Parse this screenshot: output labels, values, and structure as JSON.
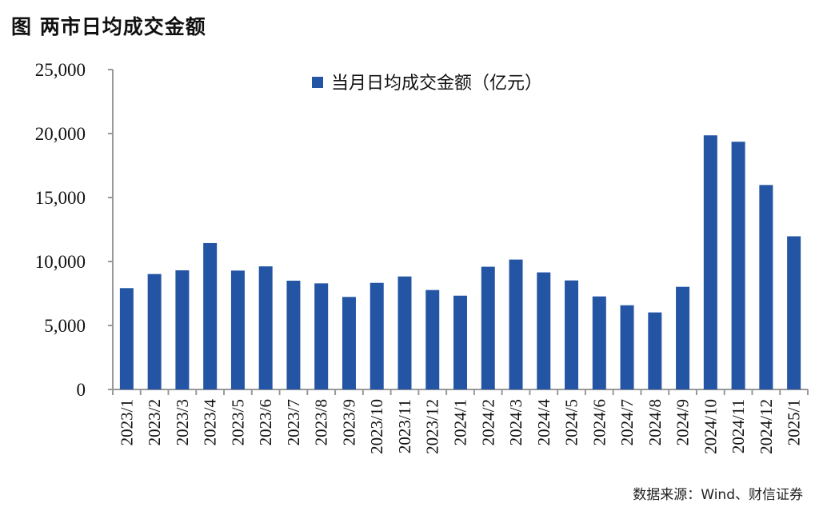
{
  "title": "图  两市日均成交金额",
  "source": "数据来源：Wind、财信证券",
  "chart_data": {
    "type": "bar",
    "title": "",
    "xlabel": "",
    "ylabel": "",
    "ylim": [
      0,
      25000
    ],
    "yticks": [
      0,
      5000,
      10000,
      15000,
      20000,
      25000
    ],
    "ytick_labels": [
      "0",
      "5,000",
      "10,000",
      "15,000",
      "20,000",
      "25,000"
    ],
    "grid": false,
    "legend_position": "top",
    "color": "#2455A4",
    "categories": [
      "2023/1",
      "2023/2",
      "2023/3",
      "2023/4",
      "2023/5",
      "2023/6",
      "2023/7",
      "2023/8",
      "2023/9",
      "2023/10",
      "2023/11",
      "2023/12",
      "2024/1",
      "2024/2",
      "2024/3",
      "2024/4",
      "2024/5",
      "2024/6",
      "2024/7",
      "2024/8",
      "2024/9",
      "2024/10",
      "2024/11",
      "2024/12",
      "2025/1"
    ],
    "series": [
      {
        "name": "当月日均成交金额（亿元）",
        "values": [
          7920,
          9020,
          9310,
          11440,
          9290,
          9620,
          8500,
          8290,
          7230,
          8330,
          8830,
          7770,
          7330,
          9590,
          10150,
          9150,
          8520,
          7270,
          6580,
          6020,
          8020,
          19860,
          19360,
          15980,
          11970
        ]
      }
    ]
  }
}
